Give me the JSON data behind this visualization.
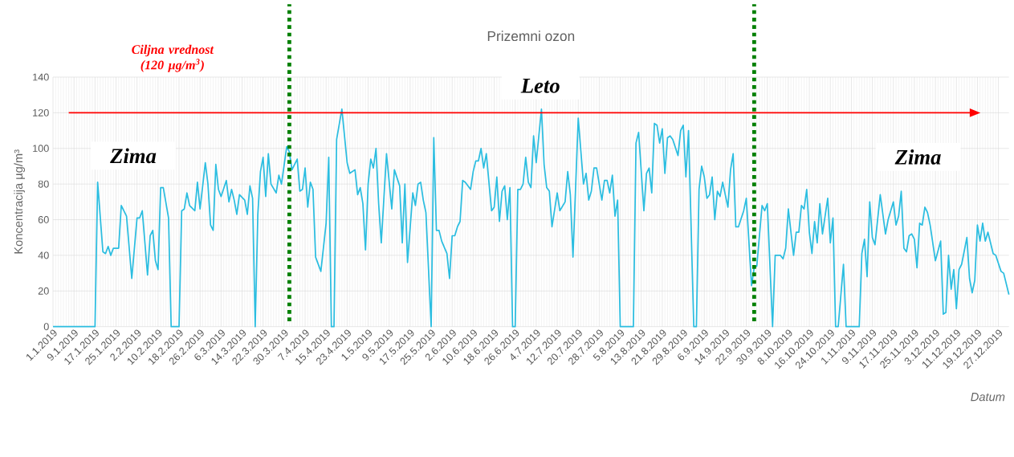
{
  "chart_data": {
    "type": "line",
    "title": "Prizemni ozon",
    "xlabel": "Datum",
    "ylabel": "Koncentracija µg/m³",
    "annotations": [
      "Ciljna vrednost (120  µg/m$^{3}$)",
      "Leto",
      "Zima",
      "Zima"
    ],
    "color": "#2bbde0",
    "marker": "none",
    "line_style": "solid",
    "grid": true,
    "xlim": [
      "2019-01-01",
      "2019-12-31"
    ],
    "ylim": [
      0,
      140
    ],
    "yticks": [
      0,
      20,
      40,
      60,
      80,
      100,
      120,
      140
    ],
    "xticks": [
      {
        "value": "2019-01-01",
        "label": "1.1.2019"
      },
      {
        "value": "2019-01-09",
        "label": "9.1.2019"
      },
      {
        "value": "2019-01-17",
        "label": "17.1.2019"
      },
      {
        "value": "2019-01-25",
        "label": "25.1.2019"
      },
      {
        "value": "2019-02-02",
        "label": "2.2.2019"
      },
      {
        "value": "2019-02-10",
        "label": "10.2.2019"
      },
      {
        "value": "2019-02-18",
        "label": "18.2.2019"
      },
      {
        "value": "2019-02-26",
        "label": "26.2.2019"
      },
      {
        "value": "2019-03-06",
        "label": "6.3.2019"
      },
      {
        "value": "2019-03-14",
        "label": "14.3.2019"
      },
      {
        "value": "2019-03-22",
        "label": "22.3.2019"
      },
      {
        "value": "2019-03-30",
        "label": "30.3.2019"
      },
      {
        "value": "2019-04-07",
        "label": "7.4.2019"
      },
      {
        "value": "2019-04-15",
        "label": "15.4.2019"
      },
      {
        "value": "2019-04-23",
        "label": "23.4.2019"
      },
      {
        "value": "2019-05-01",
        "label": "1.5.2019"
      },
      {
        "value": "2019-05-09",
        "label": "9.5.2019"
      },
      {
        "value": "2019-05-17",
        "label": "17.5.2019"
      },
      {
        "value": "2019-05-25",
        "label": "25.5.2019"
      },
      {
        "value": "2019-06-02",
        "label": "2.6.2019"
      },
      {
        "value": "2019-06-10",
        "label": "10.6.2019"
      },
      {
        "value": "2019-06-18",
        "label": "18.6.2019"
      },
      {
        "value": "2019-06-26",
        "label": "26.6.2019"
      },
      {
        "value": "2019-07-04",
        "label": "4.7.2019"
      },
      {
        "value": "2019-07-12",
        "label": "12.7.2019"
      },
      {
        "value": "2019-07-20",
        "label": "20.7.2019"
      },
      {
        "value": "2019-07-28",
        "label": "28.7.2019"
      },
      {
        "value": "2019-08-05",
        "label": "5.8.2019"
      },
      {
        "value": "2019-08-13",
        "label": "13.8.2019"
      },
      {
        "value": "2019-08-21",
        "label": "21.8.2019"
      },
      {
        "value": "2019-08-29",
        "label": "29.8.2019"
      },
      {
        "value": "2019-09-06",
        "label": "6.9.2019"
      },
      {
        "value": "2019-09-14",
        "label": "14.9.2019"
      },
      {
        "value": "2019-09-22",
        "label": "22.9.2019"
      },
      {
        "value": "2019-09-30",
        "label": "30.9.2019"
      },
      {
        "value": "2019-10-08",
        "label": "8.10.2019"
      },
      {
        "value": "2019-10-16",
        "label": "16.10.2019"
      },
      {
        "value": "2019-10-24",
        "label": "24.10.2019"
      },
      {
        "value": "2019-11-01",
        "label": "1.11.2019"
      },
      {
        "value": "2019-11-09",
        "label": "9.11.2019"
      },
      {
        "value": "2019-11-17",
        "label": "17.11.2019"
      },
      {
        "value": "2019-11-25",
        "label": "25.11.2019"
      },
      {
        "value": "2019-12-03",
        "label": "3.12.2019"
      },
      {
        "value": "2019-12-11",
        "label": "11.12.2019"
      },
      {
        "value": "2019-12-19",
        "label": "19.12.2019"
      },
      {
        "value": "2019-12-27",
        "label": "27.12.2019"
      }
    ],
    "ref_lines": [
      {
        "axis": "y",
        "value": 120,
        "color": "#ff0000",
        "line_style": "solid"
      },
      {
        "axis": "x",
        "value": "2019-04-01",
        "color": "#008000",
        "line_style": "dotted"
      },
      {
        "axis": "x",
        "value": "2019-09-25",
        "color": "#008000",
        "line_style": "dotted"
      }
    ],
    "x": [
      "2019-01-01",
      "2019-01-17",
      "2019-01-18",
      "2019-01-20",
      "2019-01-21",
      "2019-01-22",
      "2019-01-23",
      "2019-01-24",
      "2019-01-26",
      "2019-01-27",
      "2019-01-29",
      "2019-01-31",
      "2019-02-02",
      "2019-02-03",
      "2019-02-04",
      "2019-02-06",
      "2019-02-07",
      "2019-02-08",
      "2019-02-09",
      "2019-02-10",
      "2019-02-11",
      "2019-02-12",
      "2019-02-14",
      "2019-02-15",
      "2019-02-18",
      "2019-02-19",
      "2019-02-20",
      "2019-02-21",
      "2019-02-22",
      "2019-02-24",
      "2019-02-25",
      "2019-02-26",
      "2019-02-28",
      "2019-03-01",
      "2019-03-02",
      "2019-03-03",
      "2019-03-04",
      "2019-03-05",
      "2019-03-06",
      "2019-03-08",
      "2019-03-09",
      "2019-03-10",
      "2019-03-11",
      "2019-03-12",
      "2019-03-13",
      "2019-03-15",
      "2019-03-16",
      "2019-03-17",
      "2019-03-18",
      "2019-03-19",
      "2019-03-20",
      "2019-03-21",
      "2019-03-22",
      "2019-03-23",
      "2019-03-24",
      "2019-03-25",
      "2019-03-27",
      "2019-03-28",
      "2019-03-29",
      "2019-03-31",
      "2019-04-01",
      "2019-04-02",
      "2019-04-04",
      "2019-04-05",
      "2019-04-06",
      "2019-04-07",
      "2019-04-08",
      "2019-04-09",
      "2019-04-10",
      "2019-04-11",
      "2019-04-13",
      "2019-04-15",
      "2019-04-16",
      "2019-04-17",
      "2019-04-18",
      "2019-04-19",
      "2019-04-21",
      "2019-04-23",
      "2019-04-24",
      "2019-04-26",
      "2019-04-27",
      "2019-04-28",
      "2019-04-29",
      "2019-04-30",
      "2019-05-01",
      "2019-05-02",
      "2019-05-03",
      "2019-05-04",
      "2019-05-05",
      "2019-05-06",
      "2019-05-08",
      "2019-05-10",
      "2019-05-11",
      "2019-05-13",
      "2019-05-14",
      "2019-05-15",
      "2019-05-16",
      "2019-05-18",
      "2019-05-19",
      "2019-05-20",
      "2019-05-21",
      "2019-05-22",
      "2019-05-23",
      "2019-05-25",
      "2019-05-26",
      "2019-05-27",
      "2019-05-28",
      "2019-05-29",
      "2019-05-31",
      "2019-06-01",
      "2019-06-02",
      "2019-06-03",
      "2019-06-04",
      "2019-06-05",
      "2019-06-06",
      "2019-06-07",
      "2019-06-09",
      "2019-06-10",
      "2019-06-11",
      "2019-06-12",
      "2019-06-13",
      "2019-06-14",
      "2019-06-15",
      "2019-06-17",
      "2019-06-18",
      "2019-06-19",
      "2019-06-20",
      "2019-06-21",
      "2019-06-22",
      "2019-06-23",
      "2019-06-24",
      "2019-06-25",
      "2019-06-26",
      "2019-06-27",
      "2019-06-28",
      "2019-06-29",
      "2019-06-30",
      "2019-07-01",
      "2019-07-02",
      "2019-07-03",
      "2019-07-04",
      "2019-07-06",
      "2019-07-07",
      "2019-07-08",
      "2019-07-09",
      "2019-07-10",
      "2019-07-12",
      "2019-07-13",
      "2019-07-15",
      "2019-07-16",
      "2019-07-17",
      "2019-07-18",
      "2019-07-20",
      "2019-07-22",
      "2019-07-23",
      "2019-07-24",
      "2019-07-25",
      "2019-07-26",
      "2019-07-27",
      "2019-07-29",
      "2019-07-30",
      "2019-07-31",
      "2019-08-01",
      "2019-08-02",
      "2019-08-03",
      "2019-08-04",
      "2019-08-05",
      "2019-08-10",
      "2019-08-11",
      "2019-08-12",
      "2019-08-14",
      "2019-08-15",
      "2019-08-16",
      "2019-08-17",
      "2019-08-18",
      "2019-08-19",
      "2019-08-20",
      "2019-08-21",
      "2019-08-22",
      "2019-08-23",
      "2019-08-24",
      "2019-08-25",
      "2019-08-27",
      "2019-08-28",
      "2019-08-29",
      "2019-08-30",
      "2019-08-31",
      "2019-09-02",
      "2019-09-03",
      "2019-09-04",
      "2019-09-05",
      "2019-09-06",
      "2019-09-07",
      "2019-09-08",
      "2019-09-09",
      "2019-09-10",
      "2019-09-11",
      "2019-09-12",
      "2019-09-13",
      "2019-09-15",
      "2019-09-16",
      "2019-09-17",
      "2019-09-18",
      "2019-09-19",
      "2019-09-21",
      "2019-09-22",
      "2019-09-24",
      "2019-09-25",
      "2019-09-26",
      "2019-09-28",
      "2019-09-29",
      "2019-09-30",
      "2019-10-02",
      "2019-10-03",
      "2019-10-05",
      "2019-10-06",
      "2019-10-07",
      "2019-10-08",
      "2019-10-10",
      "2019-10-11",
      "2019-10-12",
      "2019-10-13",
      "2019-10-14",
      "2019-10-15",
      "2019-10-16",
      "2019-10-17",
      "2019-10-18",
      "2019-10-19",
      "2019-10-20",
      "2019-10-21",
      "2019-10-23",
      "2019-10-24",
      "2019-10-25",
      "2019-10-26",
      "2019-10-27",
      "2019-10-29",
      "2019-10-30",
      "2019-11-04",
      "2019-11-05",
      "2019-11-06",
      "2019-11-07",
      "2019-11-08",
      "2019-11-09",
      "2019-11-10",
      "2019-11-12",
      "2019-11-14",
      "2019-11-15",
      "2019-11-17",
      "2019-11-18",
      "2019-11-19",
      "2019-11-20",
      "2019-11-21",
      "2019-11-22",
      "2019-11-23",
      "2019-11-24",
      "2019-11-25",
      "2019-11-26",
      "2019-11-27",
      "2019-11-28",
      "2019-11-29",
      "2019-11-30",
      "2019-12-01",
      "2019-12-03",
      "2019-12-05",
      "2019-12-06",
      "2019-12-07",
      "2019-12-08",
      "2019-12-09",
      "2019-12-10",
      "2019-12-11",
      "2019-12-12",
      "2019-12-13",
      "2019-12-15",
      "2019-12-16",
      "2019-12-17",
      "2019-12-18",
      "2019-12-19",
      "2019-12-20",
      "2019-12-21",
      "2019-12-22",
      "2019-12-23",
      "2019-12-25",
      "2019-12-26",
      "2019-12-28",
      "2019-12-29",
      "2019-12-31"
    ],
    "values": [
      0,
      0,
      81,
      42,
      41,
      45,
      40,
      44,
      44,
      68,
      62,
      27,
      61,
      61,
      65,
      29,
      51,
      54,
      37,
      32,
      78,
      78,
      61,
      0,
      0,
      65,
      66,
      75,
      68,
      65,
      81,
      66,
      92,
      80,
      57,
      54,
      91,
      77,
      73,
      82,
      70,
      77,
      71,
      63,
      74,
      71,
      63,
      79,
      72,
      0,
      63,
      87,
      95,
      73,
      97,
      80,
      75,
      85,
      80,
      101,
      98,
      88,
      94,
      76,
      77,
      89,
      67,
      81,
      77,
      39,
      31,
      58,
      95,
      0,
      0,
      105,
      122,
      92,
      86,
      88,
      74,
      78,
      69,
      43,
      80,
      94,
      89,
      100,
      69,
      47,
      97,
      66,
      88,
      79,
      47,
      80,
      36,
      75,
      68,
      80,
      81,
      71,
      64,
      0,
      106,
      54,
      54,
      48,
      41,
      27,
      51,
      51,
      56,
      59,
      82,
      81,
      77,
      87,
      93,
      93,
      100,
      89,
      97,
      65,
      67,
      84,
      59,
      76,
      79,
      60,
      78,
      0,
      0,
      77,
      77,
      80,
      95,
      81,
      78,
      107,
      92,
      122,
      91,
      78,
      76,
      56,
      75,
      65,
      70,
      87,
      74,
      39,
      117,
      80,
      86,
      71,
      76,
      89,
      89,
      71,
      82,
      82,
      75,
      85,
      62,
      71,
      0,
      0,
      103,
      109,
      65,
      86,
      89,
      75,
      114,
      113,
      103,
      111,
      86,
      106,
      107,
      105,
      96,
      110,
      113,
      84,
      110,
      0,
      0,
      77,
      90,
      84,
      72,
      74,
      84,
      60,
      76,
      73,
      81,
      67,
      88,
      97,
      56,
      56,
      65,
      72,
      23,
      33,
      34,
      68,
      65,
      69,
      0,
      40,
      40,
      38,
      44,
      66,
      40,
      53,
      53,
      68,
      66,
      77,
      53,
      41,
      59,
      47,
      69,
      52,
      72,
      47,
      61,
      0,
      0,
      35,
      0,
      0,
      41,
      49,
      28,
      70,
      50,
      46,
      74,
      52,
      60,
      70,
      57,
      62,
      76,
      44,
      42,
      51,
      52,
      49,
      33,
      58,
      57,
      67,
      64,
      57,
      37,
      48,
      7,
      8,
      40,
      21,
      32,
      10,
      32,
      35,
      50,
      27,
      19,
      26,
      57,
      48,
      58,
      48,
      53,
      41,
      40,
      31,
      30,
      18
    ]
  }
}
